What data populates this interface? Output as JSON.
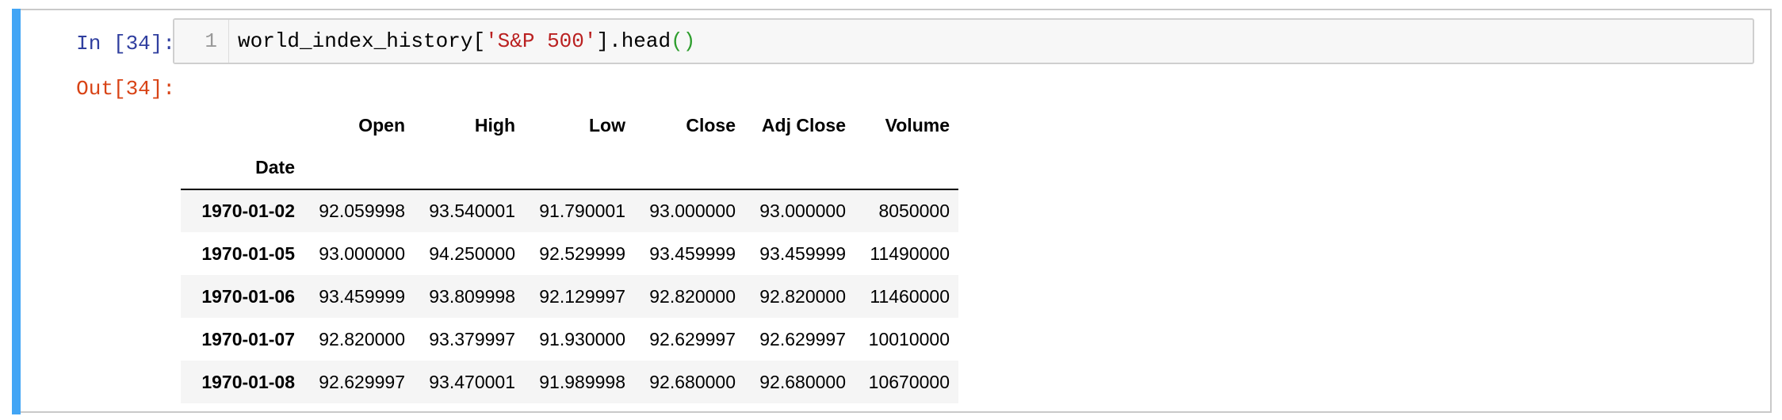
{
  "cell": {
    "input_prompt": "In [34]:",
    "output_prompt": "Out[34]:",
    "line_number": "1",
    "code": {
      "var": "world_index_history[",
      "key": "'S&P 500'",
      "method": "].head",
      "parens": "()"
    }
  },
  "dataframe": {
    "columns": [
      "Open",
      "High",
      "Low",
      "Close",
      "Adj Close",
      "Volume"
    ],
    "index_name": "Date",
    "rows": [
      {
        "date": "1970-01-02",
        "values": [
          "92.059998",
          "93.540001",
          "91.790001",
          "93.000000",
          "93.000000",
          "8050000"
        ]
      },
      {
        "date": "1970-01-05",
        "values": [
          "93.000000",
          "94.250000",
          "92.529999",
          "93.459999",
          "93.459999",
          "11490000"
        ]
      },
      {
        "date": "1970-01-06",
        "values": [
          "93.459999",
          "93.809998",
          "92.129997",
          "92.820000",
          "92.820000",
          "11460000"
        ]
      },
      {
        "date": "1970-01-07",
        "values": [
          "92.820000",
          "93.379997",
          "91.930000",
          "92.629997",
          "92.629997",
          "10010000"
        ]
      },
      {
        "date": "1970-01-08",
        "values": [
          "92.629997",
          "93.470001",
          "91.989998",
          "92.680000",
          "92.680000",
          "10670000"
        ]
      }
    ]
  },
  "colors": {
    "cell_bar": "#42a5f5",
    "input_prompt": "#303f9f",
    "output_prompt": "#d84315",
    "string": "#ba2121",
    "paren": "#2e9e2e"
  }
}
